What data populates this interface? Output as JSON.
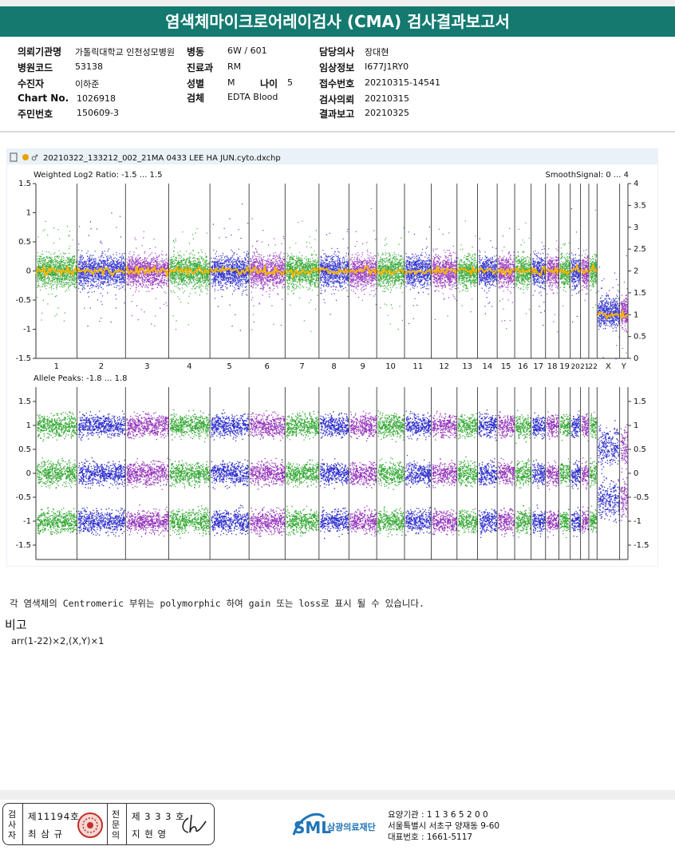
{
  "document": {
    "title": "염색체마이크로어레이검사 (CMA) 검사결과보고서"
  },
  "patient_info": {
    "institution_label": "의뢰기관명",
    "institution_value": "가톨릭대학교 인천성모병원",
    "ward_label": "병동",
    "ward_value": "6W / 601",
    "doctor_label": "담당의사",
    "doctor_value": "장대현",
    "hospital_code_label": "병원코드",
    "hospital_code_value": "53138",
    "department_label": "진료과",
    "department_value": "RM",
    "clinical_info_label": "임상정보",
    "clinical_info_value": "I677J1RY0",
    "examinee_label": "수진자",
    "examinee_value": "이하준",
    "sex_label": "성별",
    "sex_value": "M",
    "age_label": "나이",
    "age_value": "5",
    "receipt_no_label": "접수번호",
    "receipt_no_value": "20210315-14541",
    "chart_no_label": "Chart No.",
    "chart_no_value": "1026918",
    "specimen_label": "검체",
    "specimen_value": "EDTA Blood",
    "request_date_label": "검사의뢰",
    "request_date_value": "20210315",
    "id_no_label": "주민번호",
    "id_no_value": "150609-3",
    "report_date_label": "결과보고",
    "report_date_value": "20210325"
  },
  "chart_data": {
    "type": "scatter",
    "file_name": "20210322_133212_002_21MA 0433 LEE HA JUN.cyto.dxchp",
    "chromosomes": [
      "1",
      "2",
      "3",
      "4",
      "5",
      "6",
      "7",
      "8",
      "9",
      "10",
      "11",
      "12",
      "13",
      "14",
      "15",
      "16",
      "17",
      "18",
      "19",
      "20",
      "21",
      "22",
      "X",
      "Y"
    ],
    "chromosome_colors": [
      "#1c9e1c",
      "#1616c8",
      "#8a1eb4"
    ],
    "smooth_color": "#f5b400",
    "log2_panel": {
      "title": "Weighted Log2 Ratio: -1.5 ... 1.5",
      "right_title": "SmoothSignal: 0 ... 4",
      "ylim": [
        -1.5,
        1.5
      ],
      "left_ticks": [
        "1.5",
        "1",
        "0.5",
        "0",
        "-0.5",
        "-1",
        "-1.5"
      ],
      "right_ticks": [
        "4",
        "3.5",
        "3",
        "2.5",
        "2",
        "1.5",
        "1",
        "0.5",
        "0"
      ],
      "chromosome_mean_log2": [
        0,
        0,
        0,
        0,
        0,
        0,
        0,
        0,
        0,
        0,
        0,
        0,
        0,
        0,
        0,
        0,
        0,
        0,
        0,
        0,
        0,
        0,
        -0.7,
        -0.7
      ],
      "smooth_signal_copy_number": [
        2,
        2,
        2,
        2,
        2,
        2,
        2,
        2,
        2,
        2,
        2,
        2,
        2,
        2,
        2,
        2,
        2,
        2,
        2,
        2,
        2,
        2,
        1,
        1
      ]
    },
    "allele_panel": {
      "title": "Allele Peaks: -1.8 ... 1.8",
      "ylim": [
        -1.8,
        1.8
      ],
      "left_ticks": [
        "1.5",
        "1",
        "0.5",
        "0",
        "-0.5",
        "-1",
        "-1.5"
      ],
      "right_ticks": [
        "1.5",
        "1",
        "0.5",
        "0",
        "-0.5",
        "-1",
        "-1.5"
      ],
      "peak_bands": [
        1.0,
        0.0,
        -1.0
      ]
    }
  },
  "note": "각 염색체의 Centromeric 부위는 polymorphic 하여 gain 또는 loss로 표시 될 수 있습니다.",
  "remarks": {
    "title": "비고",
    "body": "arr(1-22)×2,(X,Y)×1"
  },
  "signatures": {
    "inspector_label": "검사자",
    "inspector_license": "제11194호",
    "inspector_name": "최 삼 규",
    "specialist_label": "전문의",
    "specialist_license": "제 3 3 3 호",
    "specialist_name": "지 현 영"
  },
  "lab": {
    "logo_text": "SML",
    "name": "삼광의료재단",
    "institution_code": "요양기관 : 1 1 3 6 5 2 0 0",
    "address": "서울특별시 서초구 양재동 9-60",
    "phone": "대표번호 : 1661-5117"
  }
}
